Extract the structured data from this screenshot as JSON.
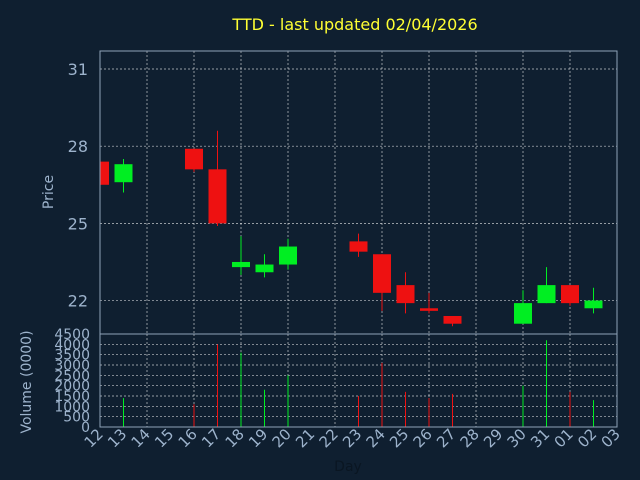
{
  "colors": {
    "background": "#0f1f30",
    "up": "#00ee22",
    "down": "#ee1111",
    "title": "#ffff33",
    "axis_text": "#9db3cc",
    "grid": "#ffffff",
    "frame": "#8fa3b8"
  },
  "chart_data": {
    "type": "candlestick",
    "title": "TTD - last updated 02/04/2026",
    "xlabel": "Day",
    "ylabel": "Price",
    "volume_label": "Volume (0000)",
    "ylim": [
      20.7,
      31.7
    ],
    "yticks": [
      22,
      25,
      28,
      31
    ],
    "volume_ylim": [
      0,
      4500
    ],
    "volume_yticks": [
      0,
      500,
      1000,
      1500,
      2000,
      2500,
      3000,
      3500,
      4000,
      4500
    ],
    "x_tick_labels": [
      "12",
      "13",
      "14",
      "15",
      "16",
      "17",
      "18",
      "19",
      "20",
      "21",
      "22",
      "23",
      "24",
      "25",
      "26",
      "27",
      "28",
      "29",
      "30",
      "31",
      "01",
      "02",
      "03"
    ],
    "grid": true,
    "candles": [
      {
        "day": "12",
        "open": 27.4,
        "high": 27.4,
        "low": 26.4,
        "close": 26.5,
        "volume": 0
      },
      {
        "day": "13",
        "open": 26.6,
        "high": 27.5,
        "low": 26.2,
        "close": 27.3,
        "volume": 1400
      },
      {
        "day": "16",
        "open": 27.9,
        "high": 27.9,
        "low": 27.0,
        "close": 27.1,
        "volume": 1100
      },
      {
        "day": "17",
        "open": 27.1,
        "high": 28.6,
        "low": 24.9,
        "close": 25.0,
        "volume": 4000
      },
      {
        "day": "18",
        "open": 23.3,
        "high": 24.5,
        "low": 23.0,
        "close": 23.5,
        "volume": 3600
      },
      {
        "day": "19",
        "open": 23.1,
        "high": 23.8,
        "low": 22.9,
        "close": 23.4,
        "volume": 1800
      },
      {
        "day": "20",
        "open": 23.4,
        "high": 24.4,
        "low": 23.2,
        "close": 24.1,
        "volume": 2500
      },
      {
        "day": "23",
        "open": 24.3,
        "high": 24.6,
        "low": 23.7,
        "close": 23.9,
        "volume": 1500
      },
      {
        "day": "24",
        "open": 23.8,
        "high": 23.8,
        "low": 21.6,
        "close": 22.3,
        "volume": 3100
      },
      {
        "day": "25",
        "open": 22.6,
        "high": 23.1,
        "low": 21.5,
        "close": 21.9,
        "volume": 1700
      },
      {
        "day": "26",
        "open": 21.7,
        "high": 22.3,
        "low": 21.5,
        "close": 21.6,
        "volume": 1400
      },
      {
        "day": "27",
        "open": 21.4,
        "high": 21.4,
        "low": 21.0,
        "close": 21.1,
        "volume": 1600
      },
      {
        "day": "30",
        "open": 21.1,
        "high": 22.4,
        "low": 21.1,
        "close": 21.9,
        "volume": 2000
      },
      {
        "day": "31",
        "open": 21.9,
        "high": 23.3,
        "low": 21.9,
        "close": 22.6,
        "volume": 4200
      },
      {
        "day": "01",
        "open": 22.6,
        "high": 22.6,
        "low": 21.8,
        "close": 21.9,
        "volume": 1700
      },
      {
        "day": "02",
        "open": 21.7,
        "high": 22.5,
        "low": 21.5,
        "close": 22.0,
        "volume": 1300
      }
    ]
  }
}
